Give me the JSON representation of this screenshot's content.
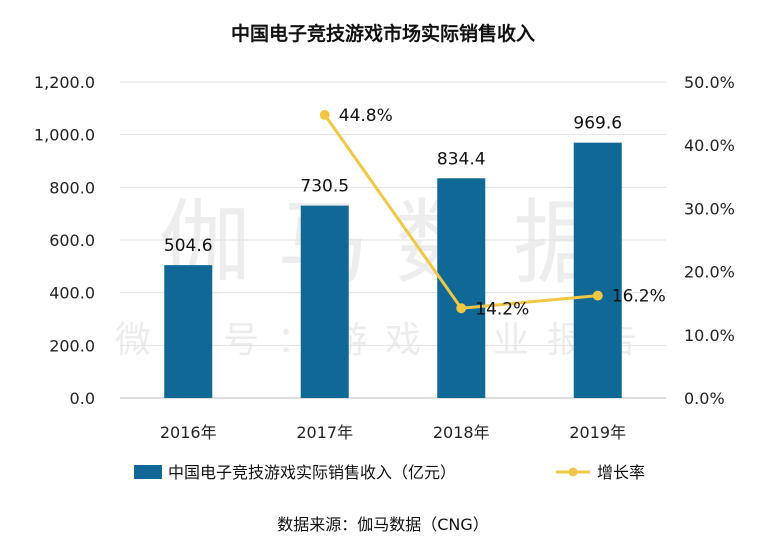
{
  "chart_data": {
    "type": "bar",
    "title": "中国电子竞技游戏市场实际销售收入",
    "categories": [
      "2016年",
      "2017年",
      "2018年",
      "2019年"
    ],
    "series": [
      {
        "name": "中国电子竞技游戏实际销售收入（亿元）",
        "kind": "bar",
        "axis": "left",
        "values": [
          504.6,
          730.5,
          834.4,
          969.6
        ],
        "labels": [
          "504.6",
          "730.5",
          "834.4",
          "969.6"
        ],
        "color": "#0f6896"
      },
      {
        "name": "增长率",
        "kind": "line",
        "axis": "right",
        "values": [
          null,
          44.8,
          14.2,
          16.2
        ],
        "labels": [
          "",
          "44.8%",
          "14.2%",
          "16.2%"
        ],
        "color": "#f0c645"
      }
    ],
    "y_left": {
      "min": 0,
      "max": 1200,
      "ticks": [
        0,
        200,
        400,
        600,
        800,
        1000,
        1200
      ],
      "tick_labels": [
        "0.0",
        "200.0",
        "400.0",
        "600.0",
        "800.0",
        "1,000.0",
        "1,200.0"
      ]
    },
    "y_right": {
      "min": 0,
      "max": 50,
      "ticks": [
        0,
        10,
        20,
        30,
        40,
        50
      ],
      "tick_labels": [
        "0.0%",
        "10.0%",
        "20.0%",
        "30.0%",
        "40.0%",
        "50.0%"
      ]
    },
    "grid": true,
    "legend_position": "bottom"
  },
  "source": "数据来源：伽马数据（CNG）",
  "watermark": {
    "main": "伽马数据",
    "sub": "微信号：游戏产业报告"
  }
}
